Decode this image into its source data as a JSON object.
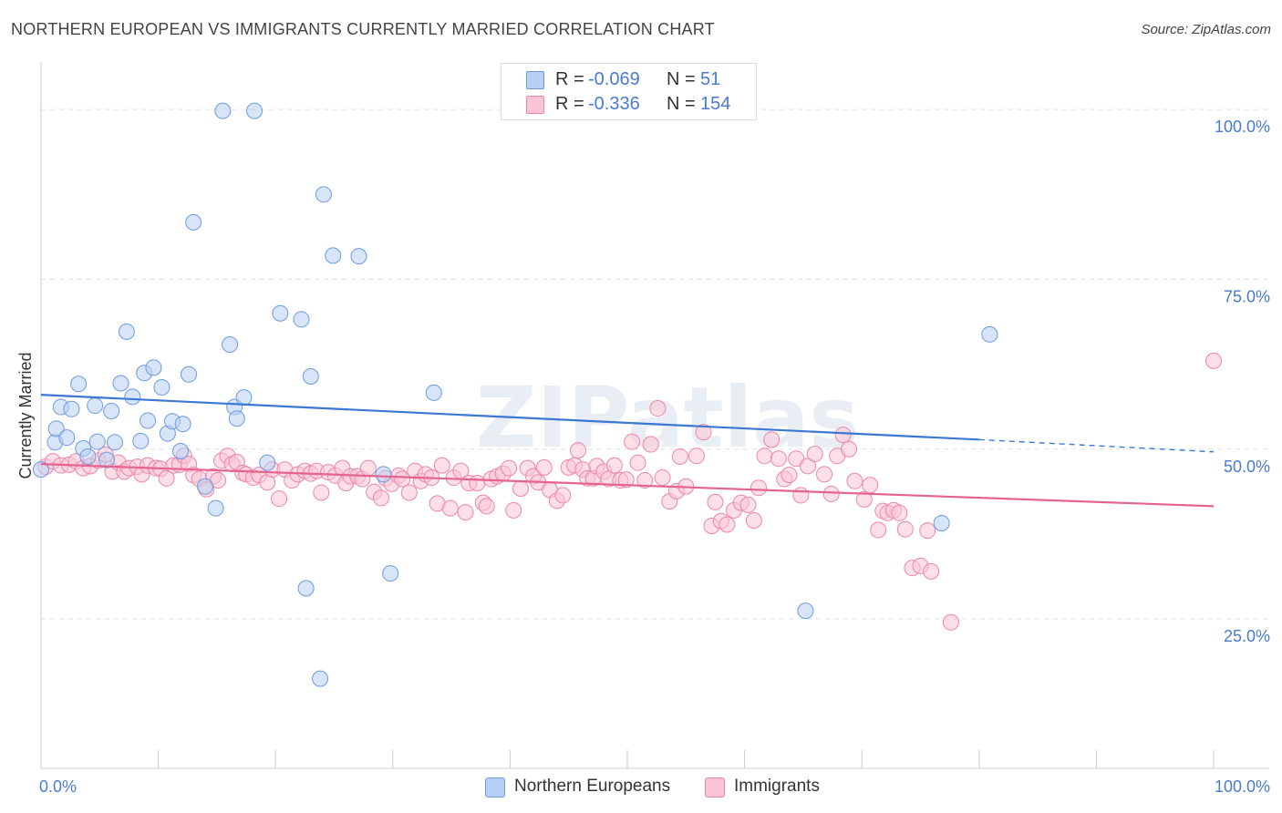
{
  "title": "NORTHERN EUROPEAN VS IMMIGRANTS CURRENTLY MARRIED CORRELATION CHART",
  "source": "Source: ZipAtlas.com",
  "watermark": "ZIPatlas",
  "legend": {
    "rows": [
      {
        "r_label": "R =",
        "r_value": "-0.069",
        "n_label": "N =",
        "n_value": "51",
        "fill": "#b8d0f3",
        "stroke": "#6b9be0"
      },
      {
        "r_label": "R =",
        "r_value": "-0.336",
        "n_label": "N =",
        "n_value": "154",
        "fill": "#fbc4d5",
        "stroke": "#ee86a7"
      }
    ]
  },
  "bottom_legend": [
    {
      "label": "Northern Europeans",
      "fill": "#b8d0f3",
      "stroke": "#6b9be0"
    },
    {
      "label": "Immigrants",
      "fill": "#fbc4d5",
      "stroke": "#ee86a7"
    }
  ],
  "chart_data": {
    "type": "scatter",
    "title": "NORTHERN EUROPEAN VS IMMIGRANTS CURRENTLY MARRIED CORRELATION CHART",
    "ylabel": "Currently Married",
    "xlabel": "",
    "xlim": [
      0,
      100
    ],
    "ylim": [
      3,
      107
    ],
    "x_tick_labels": [
      {
        "value": 0,
        "label": "0.0%"
      },
      {
        "value": 100,
        "label": "100.0%"
      }
    ],
    "y_tick_labels": [
      {
        "value": 100,
        "label": "100.0%"
      },
      {
        "value": 75,
        "label": "75.0%"
      },
      {
        "value": 50,
        "label": "50.0%"
      },
      {
        "value": 25,
        "label": "25.0%"
      }
    ],
    "grid": true,
    "series": [
      {
        "name": "Northern Europeans",
        "color": "#3a78d4",
        "fill": "#b8d0f3",
        "stroke": "#6b9be0",
        "R": -0.069,
        "N": 51,
        "trend": {
          "x_start": 0,
          "y_start": 58.0,
          "x_solid_end": 80,
          "y_solid_end": 51.4,
          "x_end": 100,
          "y_end": 49.6
        },
        "points": [
          [
            0.0,
            47.0
          ],
          [
            1.2,
            51.0
          ],
          [
            1.3,
            53.0
          ],
          [
            1.7,
            56.2
          ],
          [
            2.2,
            51.7
          ],
          [
            2.6,
            55.9
          ],
          [
            3.2,
            59.6
          ],
          [
            3.6,
            50.1
          ],
          [
            4.0,
            48.9
          ],
          [
            4.6,
            56.4
          ],
          [
            4.8,
            51.1
          ],
          [
            5.6,
            48.4
          ],
          [
            6.0,
            55.6
          ],
          [
            6.3,
            51.0
          ],
          [
            6.8,
            59.7
          ],
          [
            7.3,
            67.3
          ],
          [
            7.8,
            57.7
          ],
          [
            8.5,
            51.2
          ],
          [
            8.8,
            61.2
          ],
          [
            9.1,
            54.2
          ],
          [
            9.6,
            62.0
          ],
          [
            10.3,
            59.1
          ],
          [
            10.8,
            52.3
          ],
          [
            11.2,
            54.1
          ],
          [
            11.9,
            49.7
          ],
          [
            12.1,
            53.7
          ],
          [
            12.6,
            61.0
          ],
          [
            13.0,
            83.4
          ],
          [
            14.0,
            44.5
          ],
          [
            14.9,
            41.3
          ],
          [
            15.5,
            99.8
          ],
          [
            16.1,
            65.4
          ],
          [
            16.5,
            56.2
          ],
          [
            16.7,
            54.5
          ],
          [
            17.3,
            57.6
          ],
          [
            18.2,
            99.8
          ],
          [
            19.3,
            48.0
          ],
          [
            20.4,
            70.0
          ],
          [
            22.2,
            69.1
          ],
          [
            22.6,
            29.5
          ],
          [
            23.0,
            60.7
          ],
          [
            23.8,
            16.2
          ],
          [
            24.1,
            87.5
          ],
          [
            24.9,
            78.5
          ],
          [
            27.1,
            78.4
          ],
          [
            29.2,
            46.3
          ],
          [
            29.8,
            31.7
          ],
          [
            33.5,
            58.3
          ],
          [
            65.2,
            26.2
          ],
          [
            76.8,
            39.1
          ],
          [
            80.9,
            66.9
          ]
        ]
      },
      {
        "name": "Immigrants",
        "color": "#e5638f",
        "fill": "#fbc4d5",
        "stroke": "#ee86a7",
        "R": -0.336,
        "N": 154,
        "trend": {
          "x_start": 0,
          "y_start": 47.8,
          "x_end": 100,
          "y_end": 41.6
        },
        "points": [
          [
            0.4,
            47.4
          ],
          [
            1.0,
            48.2
          ],
          [
            1.7,
            47.6
          ],
          [
            2.4,
            47.7
          ],
          [
            3.0,
            48.2
          ],
          [
            3.6,
            47.2
          ],
          [
            4.2,
            47.5
          ],
          [
            4.9,
            48.3
          ],
          [
            5.5,
            49.2
          ],
          [
            6.1,
            46.7
          ],
          [
            6.6,
            48.0
          ],
          [
            7.1,
            46.7
          ],
          [
            7.5,
            47.2
          ],
          [
            8.2,
            47.4
          ],
          [
            8.6,
            46.3
          ],
          [
            9.1,
            47.6
          ],
          [
            9.8,
            47.2
          ],
          [
            10.2,
            47.1
          ],
          [
            10.7,
            45.7
          ],
          [
            11.3,
            47.6
          ],
          [
            11.8,
            47.7
          ],
          [
            12.2,
            49.0
          ],
          [
            12.6,
            47.8
          ],
          [
            13.0,
            46.2
          ],
          [
            13.5,
            45.6
          ],
          [
            14.1,
            44.1
          ],
          [
            14.7,
            46.0
          ],
          [
            15.1,
            45.4
          ],
          [
            15.4,
            48.3
          ],
          [
            15.9,
            49.0
          ],
          [
            16.3,
            47.8
          ],
          [
            16.7,
            48.1
          ],
          [
            17.2,
            46.5
          ],
          [
            17.5,
            46.3
          ],
          [
            18.1,
            45.8
          ],
          [
            18.6,
            46.2
          ],
          [
            19.3,
            45.1
          ],
          [
            19.7,
            47.0
          ],
          [
            20.3,
            42.7
          ],
          [
            20.8,
            47.0
          ],
          [
            21.4,
            45.4
          ],
          [
            21.9,
            46.3
          ],
          [
            22.5,
            46.8
          ],
          [
            23.0,
            46.4
          ],
          [
            23.5,
            46.8
          ],
          [
            23.9,
            43.6
          ],
          [
            24.5,
            46.6
          ],
          [
            25.1,
            46.1
          ],
          [
            25.7,
            47.2
          ],
          [
            26.0,
            45.0
          ],
          [
            26.4,
            46.0
          ],
          [
            27.0,
            46.0
          ],
          [
            27.4,
            45.6
          ],
          [
            27.9,
            47.2
          ],
          [
            28.4,
            43.7
          ],
          [
            29.0,
            42.8
          ],
          [
            29.4,
            45.7
          ],
          [
            29.9,
            44.9
          ],
          [
            30.5,
            46.1
          ],
          [
            30.8,
            45.6
          ],
          [
            31.4,
            43.6
          ],
          [
            31.9,
            46.8
          ],
          [
            32.4,
            45.3
          ],
          [
            32.8,
            46.3
          ],
          [
            33.3,
            45.8
          ],
          [
            33.8,
            42.0
          ],
          [
            34.2,
            47.6
          ],
          [
            34.9,
            41.3
          ],
          [
            35.2,
            45.8
          ],
          [
            35.8,
            46.8
          ],
          [
            36.2,
            40.7
          ],
          [
            36.5,
            45.0
          ],
          [
            37.2,
            45.0
          ],
          [
            37.7,
            42.1
          ],
          [
            38.0,
            41.6
          ],
          [
            38.4,
            45.6
          ],
          [
            38.9,
            46.0
          ],
          [
            39.4,
            46.4
          ],
          [
            39.9,
            47.2
          ],
          [
            40.3,
            41.0
          ],
          [
            40.9,
            44.2
          ],
          [
            41.5,
            47.2
          ],
          [
            42.0,
            46.0
          ],
          [
            42.4,
            45.1
          ],
          [
            42.9,
            47.3
          ],
          [
            43.4,
            44.0
          ],
          [
            44.0,
            42.4
          ],
          [
            44.5,
            43.2
          ],
          [
            45.0,
            47.3
          ],
          [
            45.5,
            47.6
          ],
          [
            45.8,
            49.8
          ],
          [
            46.2,
            47.0
          ],
          [
            46.6,
            45.7
          ],
          [
            47.1,
            45.7
          ],
          [
            47.4,
            47.5
          ],
          [
            48.0,
            46.7
          ],
          [
            48.4,
            45.6
          ],
          [
            48.9,
            47.6
          ],
          [
            49.4,
            45.4
          ],
          [
            49.9,
            45.5
          ],
          [
            50.4,
            51.1
          ],
          [
            50.9,
            48.0
          ],
          [
            51.5,
            45.4
          ],
          [
            52.0,
            50.7
          ],
          [
            52.6,
            56.0
          ],
          [
            53.0,
            45.8
          ],
          [
            53.6,
            42.3
          ],
          [
            54.2,
            43.8
          ],
          [
            54.5,
            48.9
          ],
          [
            55.0,
            44.5
          ],
          [
            55.9,
            49.0
          ],
          [
            56.5,
            52.5
          ],
          [
            57.2,
            38.7
          ],
          [
            57.5,
            42.2
          ],
          [
            58.0,
            39.4
          ],
          [
            58.5,
            38.9
          ],
          [
            59.1,
            41.0
          ],
          [
            59.7,
            42.1
          ],
          [
            60.3,
            41.8
          ],
          [
            60.8,
            39.5
          ],
          [
            61.2,
            44.3
          ],
          [
            61.7,
            49.0
          ],
          [
            62.3,
            51.4
          ],
          [
            62.9,
            48.6
          ],
          [
            63.4,
            45.6
          ],
          [
            63.8,
            46.2
          ],
          [
            64.4,
            48.6
          ],
          [
            64.8,
            43.2
          ],
          [
            65.4,
            47.5
          ],
          [
            66.0,
            49.3
          ],
          [
            66.8,
            46.3
          ],
          [
            67.4,
            43.4
          ],
          [
            67.9,
            49.0
          ],
          [
            68.4,
            52.1
          ],
          [
            68.9,
            50.0
          ],
          [
            69.4,
            45.3
          ],
          [
            70.2,
            42.6
          ],
          [
            70.7,
            44.7
          ],
          [
            71.4,
            38.1
          ],
          [
            71.8,
            40.9
          ],
          [
            72.2,
            40.6
          ],
          [
            72.7,
            41.0
          ],
          [
            73.2,
            40.6
          ],
          [
            73.7,
            38.2
          ],
          [
            74.3,
            32.5
          ],
          [
            75.0,
            32.8
          ],
          [
            75.6,
            38.0
          ],
          [
            75.9,
            32.0
          ],
          [
            77.6,
            24.5
          ],
          [
            100.0,
            63.0
          ]
        ]
      }
    ]
  }
}
